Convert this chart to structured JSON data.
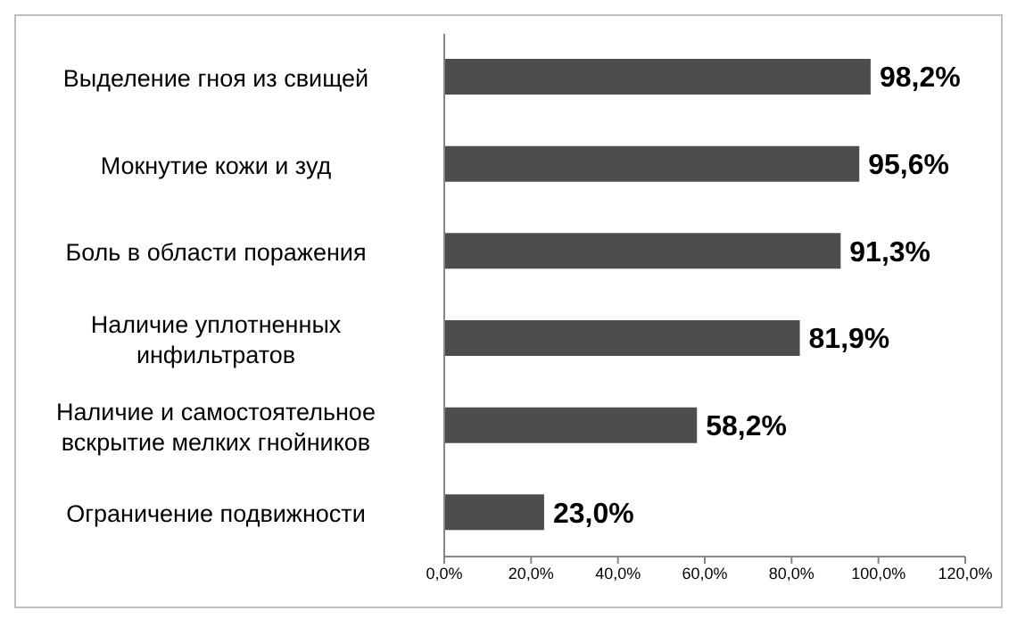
{
  "chart_data": {
    "type": "bar",
    "orientation": "horizontal",
    "categories": [
      "Выделение гноя из свищей",
      "Мокнутие кожи и зуд",
      "Боль в области поражения",
      "Наличие уплотненных инфильтратов",
      "Наличие и самостоятельное вскрытие мелких гнойников",
      "Ограничение подвижности"
    ],
    "values": [
      98.2,
      95.6,
      91.3,
      81.9,
      58.2,
      23.0
    ],
    "value_labels": [
      "98,2%",
      "95,6%",
      "91,3%",
      "81,9%",
      "58,2%",
      "23,0%"
    ],
    "color": "#4d4d4d",
    "xlim": [
      0,
      120
    ],
    "xticks": [
      {
        "value": 0,
        "label": "0,0%"
      },
      {
        "value": 20,
        "label": "20,0%"
      },
      {
        "value": 40,
        "label": "40,0%"
      },
      {
        "value": 60,
        "label": "60,0%"
      },
      {
        "value": 80,
        "label": "80,0%"
      },
      {
        "value": 100,
        "label": "100,0%"
      },
      {
        "value": 120,
        "label": "120,0%"
      }
    ],
    "grid": false,
    "legend": false
  }
}
